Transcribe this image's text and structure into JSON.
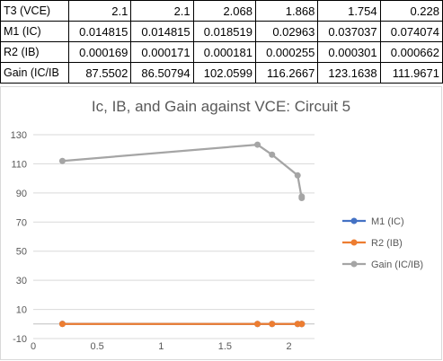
{
  "table": {
    "rows": [
      {
        "label": "T3 (VCE)",
        "values": [
          "2.1",
          "2.1",
          "2.068",
          "1.868",
          "1.754",
          "0.228"
        ]
      },
      {
        "label": "M1 (IC)",
        "values": [
          "0.014815",
          "0.014815",
          "0.018519",
          "0.02963",
          "0.037037",
          "0.074074"
        ]
      },
      {
        "label": "R2 (IB)",
        "values": [
          "0.000169",
          "0.000171",
          "0.000181",
          "0.000255",
          "0.000301",
          "0.000662"
        ]
      },
      {
        "label": "Gain (IC/IB",
        "values": [
          "87.5502",
          "86.50794",
          "102.0599",
          "116.2667",
          "123.1638",
          "111.9671"
        ]
      }
    ]
  },
  "chart_data": {
    "type": "scatter",
    "title": "Ic, IB, and Gain against VCE: Circuit 5",
    "xlabel": "",
    "ylabel": "",
    "xlim": [
      0,
      2.2
    ],
    "ylim": [
      -10,
      130
    ],
    "x_ticks": [
      "0",
      "0.5",
      "1",
      "1.5",
      "2"
    ],
    "y_ticks": [
      "-10",
      "10",
      "30",
      "50",
      "70",
      "90",
      "110",
      "130"
    ],
    "grid": "horizontal",
    "legend": "right",
    "series": [
      {
        "name": "M1 (IC)",
        "color": "#4472C4",
        "x": [
          2.1,
          2.1,
          2.068,
          1.868,
          1.754,
          0.228
        ],
        "y": [
          0.014815,
          0.014815,
          0.018519,
          0.02963,
          0.037037,
          0.074074
        ]
      },
      {
        "name": "R2 (IB)",
        "color": "#ED7D31",
        "x": [
          2.1,
          2.1,
          2.068,
          1.868,
          1.754,
          0.228
        ],
        "y": [
          0.000169,
          0.000171,
          0.000181,
          0.000255,
          0.000301,
          0.000662
        ]
      },
      {
        "name": "Gain (IC/IB)",
        "color": "#A5A5A5",
        "x": [
          2.1,
          2.1,
          2.068,
          1.868,
          1.754,
          0.228
        ],
        "y": [
          87.5502,
          86.50794,
          102.0599,
          116.2667,
          123.1638,
          111.9671
        ]
      }
    ]
  }
}
